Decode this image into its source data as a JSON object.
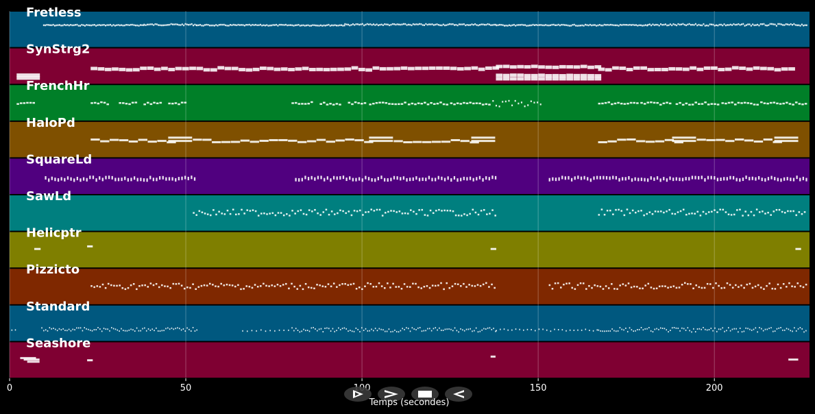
{
  "chart_data": {
    "type": "piano-roll",
    "xlabel": "Temps (secondes)",
    "xlim": [
      0,
      227
    ],
    "xticks": [
      0,
      50,
      100,
      150,
      200
    ],
    "grid": true,
    "tracks": [
      {
        "name": "Fretless",
        "color": "#00587f",
        "noteHeight": 2.5,
        "segments": [
          {
            "start": 9.5,
            "end": 38,
            "step": 0.45,
            "pitch": [
              0.35,
              0.38
            ],
            "len": 0.38
          },
          {
            "start": 38,
            "end": 53,
            "step": 0.45,
            "pitch": [
              0.33,
              0.37
            ],
            "len": 0.38
          },
          {
            "start": 53,
            "end": 95,
            "step": 0.45,
            "pitch": [
              0.35,
              0.38
            ],
            "len": 0.38
          },
          {
            "start": 95,
            "end": 138,
            "step": 0.45,
            "pitch": [
              0.33,
              0.37
            ],
            "len": 0.38
          },
          {
            "start": 138,
            "end": 181,
            "step": 0.45,
            "pitch": [
              0.35,
              0.38
            ],
            "len": 0.38
          },
          {
            "start": 181,
            "end": 226,
            "step": 0.45,
            "pitch": [
              0.33,
              0.38
            ],
            "len": 0.38
          }
        ]
      },
      {
        "name": "SynStrg2",
        "color": "#7f0032",
        "noteHeight": 5,
        "segments": [
          {
            "start": 2,
            "end": 9,
            "step": 7,
            "pitch": [
              0.7,
              0.7
            ],
            "len": 6.6
          },
          {
            "start": 2,
            "end": 9,
            "step": 7,
            "pitch": [
              0.78,
              0.78
            ],
            "len": 6.6
          },
          {
            "start": 23,
            "end": 138,
            "step": 2,
            "pitch": [
              0.5,
              0.56
            ],
            "len": 1.9
          },
          {
            "start": 138,
            "end": 167,
            "step": 2,
            "pitch": [
              0.46,
              0.49
            ],
            "len": 1.9
          },
          {
            "start": 138,
            "end": 167,
            "step": 2,
            "pitch": [
              0.7,
              0.72
            ],
            "len": 1.9
          },
          {
            "start": 138,
            "end": 167,
            "step": 2,
            "pitch": [
              0.8,
              0.8
            ],
            "len": 1.9
          },
          {
            "start": 167,
            "end": 223,
            "step": 2,
            "pitch": [
              0.5,
              0.56
            ],
            "len": 1.9
          }
        ]
      },
      {
        "name": "FrenchHr",
        "color": "#007f28",
        "noteHeight": 2.5,
        "segments": [
          {
            "start": 2,
            "end": 7,
            "step": 0.9,
            "pitch": [
              0.47,
              0.52
            ],
            "len": 0.7
          },
          {
            "start": 23,
            "end": 28,
            "step": 0.9,
            "pitch": [
              0.46,
              0.52
            ],
            "len": 0.7
          },
          {
            "start": 31,
            "end": 36,
            "step": 0.9,
            "pitch": [
              0.46,
              0.52
            ],
            "len": 0.7
          },
          {
            "start": 38,
            "end": 43,
            "step": 0.9,
            "pitch": [
              0.47,
              0.52
            ],
            "len": 0.7
          },
          {
            "start": 45,
            "end": 50,
            "step": 0.9,
            "pitch": [
              0.46,
              0.52
            ],
            "len": 0.7
          },
          {
            "start": 80,
            "end": 86,
            "step": 0.9,
            "pitch": [
              0.45,
              0.52
            ],
            "len": 0.7
          },
          {
            "start": 88,
            "end": 94,
            "step": 0.9,
            "pitch": [
              0.45,
              0.53
            ],
            "len": 0.7
          },
          {
            "start": 96,
            "end": 101,
            "step": 0.9,
            "pitch": [
              0.46,
              0.53
            ],
            "len": 0.7
          },
          {
            "start": 102,
            "end": 112,
            "step": 0.9,
            "pitch": [
              0.46,
              0.53
            ],
            "len": 0.7
          },
          {
            "start": 113,
            "end": 124,
            "step": 0.9,
            "pitch": [
              0.46,
              0.53
            ],
            "len": 0.7
          },
          {
            "start": 125,
            "end": 136,
            "step": 0.9,
            "pitch": [
              0.46,
              0.53
            ],
            "len": 0.7
          },
          {
            "start": 137,
            "end": 151,
            "step": 0.9,
            "pitch": [
              0.42,
              0.58
            ],
            "len": 0.4
          },
          {
            "start": 167,
            "end": 178,
            "step": 0.9,
            "pitch": [
              0.46,
              0.53
            ],
            "len": 0.7
          },
          {
            "start": 179,
            "end": 188,
            "step": 0.9,
            "pitch": [
              0.46,
              0.53
            ],
            "len": 0.7
          },
          {
            "start": 189,
            "end": 201,
            "step": 0.9,
            "pitch": [
              0.46,
              0.53
            ],
            "len": 0.7
          },
          {
            "start": 202,
            "end": 212,
            "step": 0.9,
            "pitch": [
              0.46,
              0.53
            ],
            "len": 0.7
          },
          {
            "start": 213,
            "end": 226,
            "step": 0.9,
            "pitch": [
              0.46,
              0.53
            ],
            "len": 0.7
          }
        ]
      },
      {
        "name": "HaloPd",
        "color": "#7f5000",
        "noteHeight": 3,
        "segments": [
          {
            "start": 23,
            "end": 47,
            "step": 2.7,
            "pitch": [
              0.47,
              0.55
            ],
            "len": 2.6
          },
          {
            "start": 45,
            "end": 52,
            "step": 7,
            "pitch": [
              0.42,
              0.42
            ],
            "len": 6.8
          },
          {
            "start": 45,
            "end": 52,
            "step": 7,
            "pitch": [
              0.51,
              0.51
            ],
            "len": 6.8
          },
          {
            "start": 52,
            "end": 103,
            "step": 2.7,
            "pitch": [
              0.47,
              0.55
            ],
            "len": 2.6
          },
          {
            "start": 102,
            "end": 109,
            "step": 7,
            "pitch": [
              0.42,
              0.42
            ],
            "len": 6.8
          },
          {
            "start": 102,
            "end": 109,
            "step": 7,
            "pitch": [
              0.51,
              0.51
            ],
            "len": 6.8
          },
          {
            "start": 109,
            "end": 131,
            "step": 2.7,
            "pitch": [
              0.47,
              0.55
            ],
            "len": 2.6
          },
          {
            "start": 131,
            "end": 138,
            "step": 7,
            "pitch": [
              0.42,
              0.42
            ],
            "len": 6.8
          },
          {
            "start": 131,
            "end": 138,
            "step": 7,
            "pitch": [
              0.51,
              0.51
            ],
            "len": 6.8
          },
          {
            "start": 167,
            "end": 189,
            "step": 2.7,
            "pitch": [
              0.47,
              0.55
            ],
            "len": 2.6
          },
          {
            "start": 188,
            "end": 195,
            "step": 7,
            "pitch": [
              0.42,
              0.42
            ],
            "len": 6.8
          },
          {
            "start": 188,
            "end": 195,
            "step": 7,
            "pitch": [
              0.51,
              0.51
            ],
            "len": 6.8
          },
          {
            "start": 195,
            "end": 217,
            "step": 2.7,
            "pitch": [
              0.47,
              0.55
            ],
            "len": 2.6
          },
          {
            "start": 217,
            "end": 224,
            "step": 7,
            "pitch": [
              0.42,
              0.42
            ],
            "len": 6.8
          },
          {
            "start": 217,
            "end": 224,
            "step": 7,
            "pitch": [
              0.51,
              0.51
            ],
            "len": 6.8
          }
        ]
      },
      {
        "name": "SquareLd",
        "color": "#50007f",
        "noteHeight": 5,
        "segments": [
          {
            "start": 10,
            "end": 53,
            "step": 0.9,
            "pitch": [
              0.48,
              0.56
            ],
            "len": 0.45
          },
          {
            "start": 81,
            "end": 138,
            "step": 0.9,
            "pitch": [
              0.48,
              0.56
            ],
            "len": 0.45
          },
          {
            "start": 153,
            "end": 226,
            "step": 0.9,
            "pitch": [
              0.48,
              0.56
            ],
            "len": 0.45
          }
        ]
      },
      {
        "name": "SawLd",
        "color": "#007f7f",
        "noteHeight": 2.5,
        "segments": [
          {
            "start": 52,
            "end": 138,
            "step": 0.8,
            "pitch": [
              0.38,
              0.55
            ],
            "len": 0.5
          },
          {
            "start": 167,
            "end": 226,
            "step": 0.8,
            "pitch": [
              0.38,
              0.55
            ],
            "len": 0.5
          }
        ]
      },
      {
        "name": "Helicptr",
        "color": "#7f7f00",
        "noteHeight": 3,
        "segments": [
          {
            "start": 7,
            "end": 9,
            "step": 2,
            "pitch": [
              0.45,
              0.45
            ],
            "len": 1.8
          },
          {
            "start": 22,
            "end": 24,
            "step": 2,
            "pitch": [
              0.38,
              0.38
            ],
            "len": 1.6
          },
          {
            "start": 136.5,
            "end": 138.5,
            "step": 2,
            "pitch": [
              0.45,
              0.45
            ],
            "len": 1.6
          },
          {
            "start": 223,
            "end": 225,
            "step": 2,
            "pitch": [
              0.45,
              0.45
            ],
            "len": 1.6
          }
        ]
      },
      {
        "name": "Pizzicto",
        "color": "#7f2800",
        "noteHeight": 2.5,
        "segments": [
          {
            "start": 23,
            "end": 138,
            "step": 0.8,
            "pitch": [
              0.38,
              0.55
            ],
            "len": 0.5
          },
          {
            "start": 153,
            "end": 226,
            "step": 0.8,
            "pitch": [
              0.38,
              0.55
            ],
            "len": 0.5
          }
        ]
      },
      {
        "name": "Standard",
        "color": "#00587f",
        "noteHeight": 2,
        "segments": [
          {
            "start": 0.5,
            "end": 2,
            "step": 1,
            "pitch": [
              0.66,
              0.68
            ],
            "len": 0.3
          },
          {
            "start": 9,
            "end": 53,
            "step": 0.55,
            "pitch": [
              0.6,
              0.7
            ],
            "len": 0.3
          },
          {
            "start": 66,
            "end": 80,
            "step": 1.3,
            "pitch": [
              0.66,
              0.7
            ],
            "len": 0.3
          },
          {
            "start": 80,
            "end": 138,
            "step": 0.55,
            "pitch": [
              0.6,
              0.72
            ],
            "len": 0.3
          },
          {
            "start": 138,
            "end": 167,
            "step": 1.1,
            "pitch": [
              0.64,
              0.7
            ],
            "len": 0.3
          },
          {
            "start": 167,
            "end": 226,
            "step": 0.55,
            "pitch": [
              0.6,
              0.72
            ],
            "len": 0.3
          }
        ]
      },
      {
        "name": "Seashore",
        "color": "#7f0032",
        "noteHeight": 3,
        "segments": [
          {
            "start": 3,
            "end": 9,
            "step": 7,
            "pitch": [
              0.42,
              0.42
            ],
            "len": 4.5
          },
          {
            "start": 5,
            "end": 9,
            "step": 7,
            "pitch": [
              0.52,
              0.52
            ],
            "len": 3.5
          },
          {
            "start": 4,
            "end": 9,
            "step": 7,
            "pitch": [
              0.46,
              0.46
            ],
            "len": 4.5
          },
          {
            "start": 22,
            "end": 24,
            "step": 2,
            "pitch": [
              0.48,
              0.48
            ],
            "len": 1.6
          },
          {
            "start": 136.5,
            "end": 138.5,
            "step": 2,
            "pitch": [
              0.38,
              0.38
            ],
            "len": 1.4
          },
          {
            "start": 221,
            "end": 224,
            "step": 3,
            "pitch": [
              0.46,
              0.46
            ],
            "len": 2.8
          }
        ]
      }
    ]
  },
  "controls": [
    {
      "name": "play-button",
      "symbol": "play"
    },
    {
      "name": "fast-forward-button",
      "symbol": "forward"
    },
    {
      "name": "stop-button",
      "symbol": "stop"
    },
    {
      "name": "rewind-button",
      "symbol": "back"
    }
  ]
}
